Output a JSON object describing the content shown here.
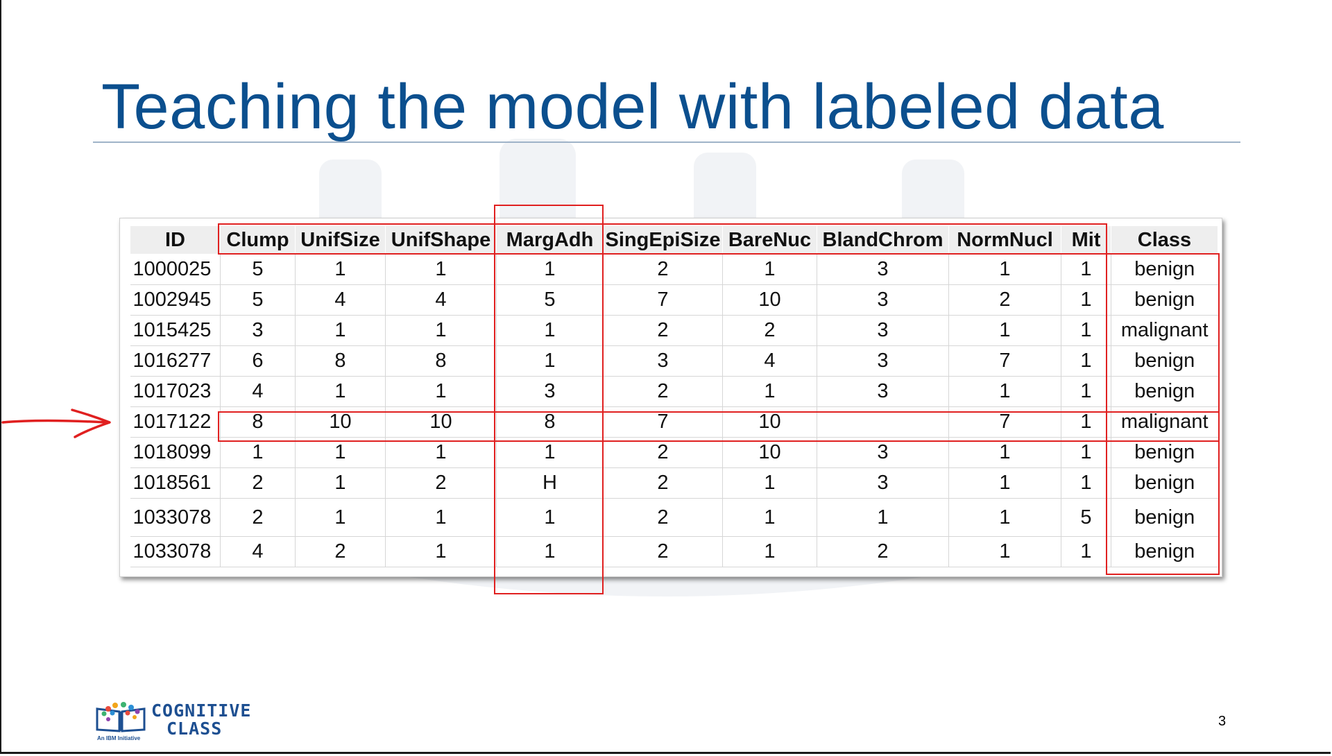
{
  "slide": {
    "title": "Teaching the model with labeled data",
    "page_number": "3"
  },
  "table": {
    "columns": [
      "ID",
      "Clump",
      "UnifSize",
      "UnifShape",
      "MargAdh",
      "SingEpiSize",
      "BareNuc",
      "BlandChrom",
      "NormNucl",
      "Mit",
      "Class"
    ],
    "rows": [
      [
        "1000025",
        "5",
        "1",
        "1",
        "1",
        "2",
        "1",
        "3",
        "1",
        "1",
        "benign"
      ],
      [
        "1002945",
        "5",
        "4",
        "4",
        "5",
        "7",
        "10",
        "3",
        "2",
        "1",
        "benign"
      ],
      [
        "1015425",
        "3",
        "1",
        "1",
        "1",
        "2",
        "2",
        "3",
        "1",
        "1",
        "malignant"
      ],
      [
        "1016277",
        "6",
        "8",
        "8",
        "1",
        "3",
        "4",
        "3",
        "7",
        "1",
        "benign"
      ],
      [
        "1017023",
        "4",
        "1",
        "1",
        "3",
        "2",
        "1",
        "3",
        "1",
        "1",
        "benign"
      ],
      [
        "1017122",
        "8",
        "10",
        "10",
        "8",
        "7",
        "10",
        "",
        "7",
        "1",
        "malignant"
      ],
      [
        "1018099",
        "1",
        "1",
        "1",
        "1",
        "2",
        "10",
        "3",
        "1",
        "1",
        "benign"
      ],
      [
        "1018561",
        "2",
        "1",
        "2",
        "H",
        "2",
        "1",
        "3",
        "1",
        "1",
        "benign"
      ],
      [
        "1033078",
        "2",
        "1",
        "1",
        "1",
        "2",
        "1",
        "1",
        "1",
        "5",
        "benign"
      ],
      [
        "1033078",
        "4",
        "2",
        "1",
        "1",
        "2",
        "1",
        "2",
        "1",
        "1",
        "benign"
      ]
    ]
  },
  "highlights": {
    "color": "#e02020",
    "regions": [
      "feature-columns",
      "margadh-column",
      "class-column",
      "row-1017122"
    ]
  },
  "logo": {
    "line1": "COGNITIVE",
    "line2": "CLASS",
    "tagline": "An IBM Initiative"
  },
  "colors": {
    "title": "#0b4f8e",
    "highlight": "#e02020",
    "header_bg": "#eeeeee",
    "logo": "#1d4f91"
  }
}
